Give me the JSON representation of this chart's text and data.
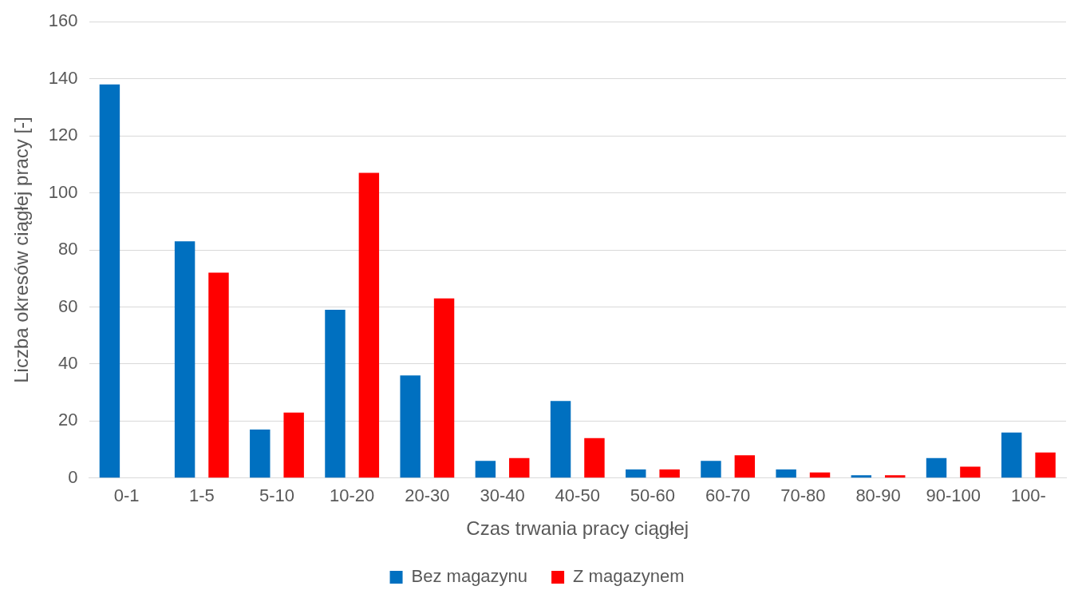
{
  "chart_data": {
    "type": "bar",
    "xlabel": "Czas trwania pracy ciągłej",
    "ylabel": "Liczba okresów ciągłej pracy [-]",
    "categories": [
      "0-1",
      "1-5",
      "5-10",
      "10-20",
      "20-30",
      "30-40",
      "40-50",
      "50-60",
      "60-70",
      "70-80",
      "80-90",
      "90-100",
      "100-"
    ],
    "series": [
      {
        "name": "Bez magazynu",
        "color": "#0070c0",
        "values": [
          138,
          83,
          17,
          59,
          36,
          6,
          27,
          3,
          6,
          3,
          1,
          7,
          16
        ]
      },
      {
        "name": "Z magazynem",
        "color": "#ff0000",
        "values": [
          0,
          72,
          23,
          107,
          63,
          7,
          14,
          3,
          8,
          2,
          1,
          4,
          9
        ]
      }
    ],
    "ylim": [
      0,
      160
    ],
    "yticks": [
      0,
      20,
      40,
      60,
      80,
      100,
      120,
      140,
      160
    ],
    "grid": "y",
    "legend": "bottom"
  }
}
